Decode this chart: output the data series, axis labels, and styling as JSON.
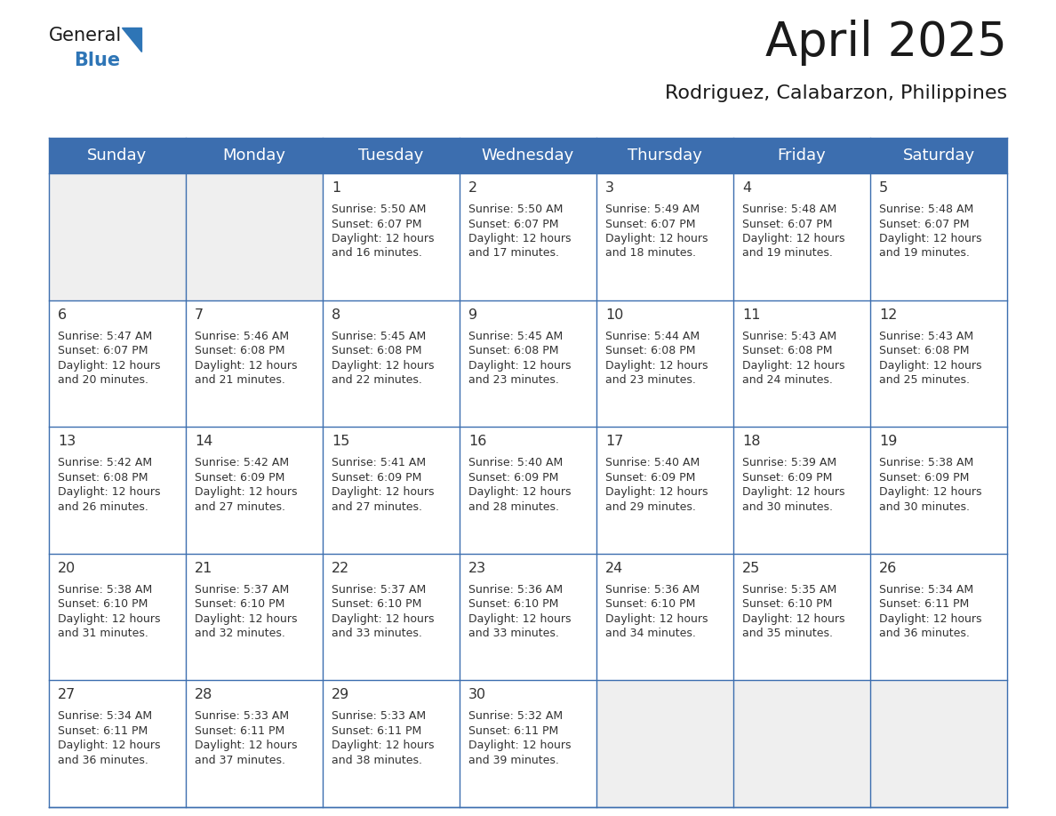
{
  "title": "April 2025",
  "subtitle": "Rodriguez, Calabarzon, Philippines",
  "days_of_week": [
    "Sunday",
    "Monday",
    "Tuesday",
    "Wednesday",
    "Thursday",
    "Friday",
    "Saturday"
  ],
  "header_bg": "#3C6EAF",
  "header_text": "#FFFFFF",
  "border_color": "#3C6EAF",
  "text_color": "#333333",
  "day_num_color": "#333333",
  "title_color": "#1a1a1a",
  "subtitle_color": "#1a1a1a",
  "empty_cell_bg": "#EFEFEF",
  "filled_cell_bg": "#FFFFFF",
  "logo_general_color": "#1a1a1a",
  "logo_blue_color": "#2E75B6",
  "weeks": [
    [
      {
        "day": "",
        "sunrise": "",
        "sunset": "",
        "daylight": ""
      },
      {
        "day": "",
        "sunrise": "",
        "sunset": "",
        "daylight": ""
      },
      {
        "day": "1",
        "sunrise": "5:50 AM",
        "sunset": "6:07 PM",
        "daylight": "16 minutes."
      },
      {
        "day": "2",
        "sunrise": "5:50 AM",
        "sunset": "6:07 PM",
        "daylight": "17 minutes."
      },
      {
        "day": "3",
        "sunrise": "5:49 AM",
        "sunset": "6:07 PM",
        "daylight": "18 minutes."
      },
      {
        "day": "4",
        "sunrise": "5:48 AM",
        "sunset": "6:07 PM",
        "daylight": "19 minutes."
      },
      {
        "day": "5",
        "sunrise": "5:48 AM",
        "sunset": "6:07 PM",
        "daylight": "19 minutes."
      }
    ],
    [
      {
        "day": "6",
        "sunrise": "5:47 AM",
        "sunset": "6:07 PM",
        "daylight": "20 minutes."
      },
      {
        "day": "7",
        "sunrise": "5:46 AM",
        "sunset": "6:08 PM",
        "daylight": "21 minutes."
      },
      {
        "day": "8",
        "sunrise": "5:45 AM",
        "sunset": "6:08 PM",
        "daylight": "22 minutes."
      },
      {
        "day": "9",
        "sunrise": "5:45 AM",
        "sunset": "6:08 PM",
        "daylight": "23 minutes."
      },
      {
        "day": "10",
        "sunrise": "5:44 AM",
        "sunset": "6:08 PM",
        "daylight": "23 minutes."
      },
      {
        "day": "11",
        "sunrise": "5:43 AM",
        "sunset": "6:08 PM",
        "daylight": "24 minutes."
      },
      {
        "day": "12",
        "sunrise": "5:43 AM",
        "sunset": "6:08 PM",
        "daylight": "25 minutes."
      }
    ],
    [
      {
        "day": "13",
        "sunrise": "5:42 AM",
        "sunset": "6:08 PM",
        "daylight": "26 minutes."
      },
      {
        "day": "14",
        "sunrise": "5:42 AM",
        "sunset": "6:09 PM",
        "daylight": "27 minutes."
      },
      {
        "day": "15",
        "sunrise": "5:41 AM",
        "sunset": "6:09 PM",
        "daylight": "27 minutes."
      },
      {
        "day": "16",
        "sunrise": "5:40 AM",
        "sunset": "6:09 PM",
        "daylight": "28 minutes."
      },
      {
        "day": "17",
        "sunrise": "5:40 AM",
        "sunset": "6:09 PM",
        "daylight": "29 minutes."
      },
      {
        "day": "18",
        "sunrise": "5:39 AM",
        "sunset": "6:09 PM",
        "daylight": "30 minutes."
      },
      {
        "day": "19",
        "sunrise": "5:38 AM",
        "sunset": "6:09 PM",
        "daylight": "30 minutes."
      }
    ],
    [
      {
        "day": "20",
        "sunrise": "5:38 AM",
        "sunset": "6:10 PM",
        "daylight": "31 minutes."
      },
      {
        "day": "21",
        "sunrise": "5:37 AM",
        "sunset": "6:10 PM",
        "daylight": "32 minutes."
      },
      {
        "day": "22",
        "sunrise": "5:37 AM",
        "sunset": "6:10 PM",
        "daylight": "33 minutes."
      },
      {
        "day": "23",
        "sunrise": "5:36 AM",
        "sunset": "6:10 PM",
        "daylight": "33 minutes."
      },
      {
        "day": "24",
        "sunrise": "5:36 AM",
        "sunset": "6:10 PM",
        "daylight": "34 minutes."
      },
      {
        "day": "25",
        "sunrise": "5:35 AM",
        "sunset": "6:10 PM",
        "daylight": "35 minutes."
      },
      {
        "day": "26",
        "sunrise": "5:34 AM",
        "sunset": "6:11 PM",
        "daylight": "36 minutes."
      }
    ],
    [
      {
        "day": "27",
        "sunrise": "5:34 AM",
        "sunset": "6:11 PM",
        "daylight": "36 minutes."
      },
      {
        "day": "28",
        "sunrise": "5:33 AM",
        "sunset": "6:11 PM",
        "daylight": "37 minutes."
      },
      {
        "day": "29",
        "sunrise": "5:33 AM",
        "sunset": "6:11 PM",
        "daylight": "38 minutes."
      },
      {
        "day": "30",
        "sunrise": "5:32 AM",
        "sunset": "6:11 PM",
        "daylight": "39 minutes."
      },
      {
        "day": "",
        "sunrise": "",
        "sunset": "",
        "daylight": ""
      },
      {
        "day": "",
        "sunrise": "",
        "sunset": "",
        "daylight": ""
      },
      {
        "day": "",
        "sunrise": "",
        "sunset": "",
        "daylight": ""
      }
    ]
  ]
}
